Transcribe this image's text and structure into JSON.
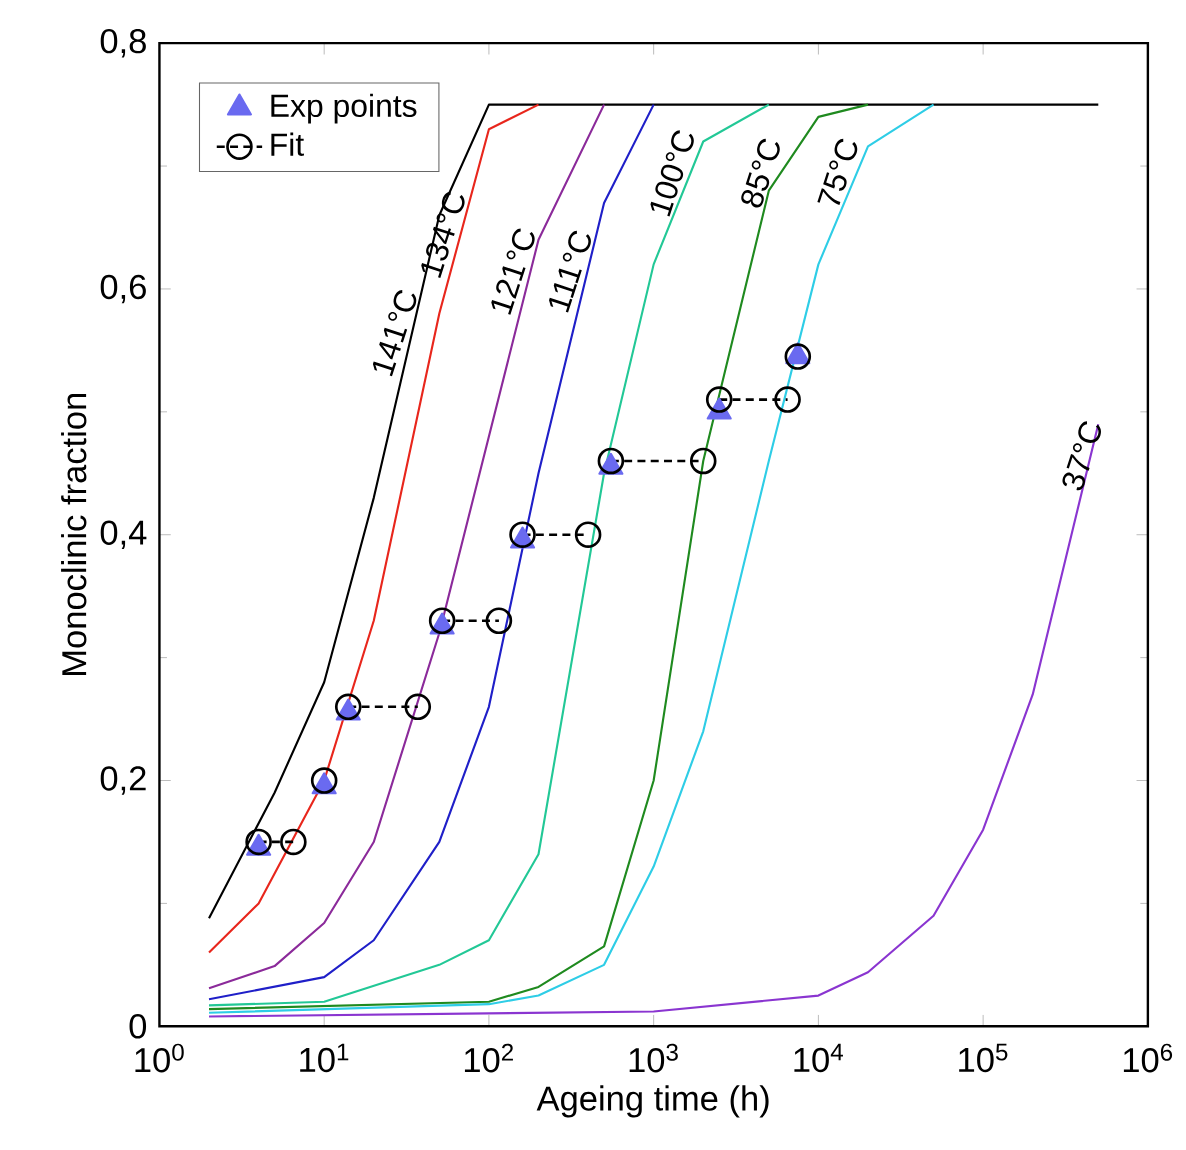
{
  "chart_data": {
    "type": "line",
    "xlabel": "Ageing time (h)",
    "ylabel": "Monoclinic fraction",
    "log": "x",
    "xlim": [
      1,
      1000000
    ],
    "ylim": [
      0,
      0.8
    ],
    "xticks": [
      {
        "value": 1,
        "label": "10$^{0}$"
      },
      {
        "value": 10,
        "label": "10$^{1}$"
      },
      {
        "value": 100,
        "label": "10$^{2}$"
      },
      {
        "value": 1000,
        "label": "10$^{3}$"
      },
      {
        "value": 10000,
        "label": "10$^{4}$"
      },
      {
        "value": 100000,
        "label": "10$^{5}$"
      },
      {
        "value": 1000000,
        "label": "10$^{6}$"
      }
    ],
    "yticks": [
      0,
      {
        "value": 0.2,
        "label": "0,2"
      },
      {
        "value": 0.4,
        "label": "0,4"
      },
      {
        "value": 0.6,
        "label": "0,6"
      },
      {
        "value": 0.8,
        "label": "0,8"
      }
    ],
    "grid": false,
    "legend": "top left",
    "series": [
      {
        "name": "141°C",
        "type": "line",
        "color": "#000000",
        "marker": "none",
        "x": [
          2,
          5,
          10,
          20,
          50,
          100,
          500000
        ],
        "values": [
          0.088,
          0.19,
          0.28,
          0.43,
          0.66,
          0.75,
          0.75
        ]
      },
      {
        "name": "134°C",
        "type": "line",
        "color": "#e8261c",
        "marker": "none",
        "x": [
          2,
          4,
          10,
          20,
          50,
          100,
          200
        ],
        "values": [
          0.06,
          0.1,
          0.2,
          0.33,
          0.58,
          0.73,
          0.75
        ]
      },
      {
        "name": "121°C",
        "type": "line",
        "color": "#8b2a9a",
        "marker": "none",
        "x": [
          2,
          5,
          10,
          20,
          50,
          100,
          200,
          500
        ],
        "values": [
          0.031,
          0.049,
          0.084,
          0.15,
          0.32,
          0.48,
          0.64,
          0.75
        ]
      },
      {
        "name": "111°C",
        "type": "line",
        "color": "#1f1fc8",
        "marker": "none",
        "x": [
          2,
          10,
          20,
          50,
          100,
          200,
          500,
          1000
        ],
        "values": [
          0.022,
          0.04,
          0.07,
          0.15,
          0.26,
          0.45,
          0.67,
          0.75
        ]
      },
      {
        "name": "100°C",
        "type": "line",
        "color": "#22c896",
        "marker": "none",
        "x": [
          2,
          10,
          50,
          100,
          200,
          500,
          1000,
          2000,
          5000
        ],
        "values": [
          0.017,
          0.02,
          0.05,
          0.07,
          0.14,
          0.45,
          0.62,
          0.72,
          0.75
        ]
      },
      {
        "name": "85°C",
        "type": "line",
        "color": "#1f8a1f",
        "marker": "none",
        "x": [
          2,
          100,
          200,
          500,
          1000,
          2000,
          5000,
          10000,
          20000
        ],
        "values": [
          0.014,
          0.02,
          0.032,
          0.065,
          0.2,
          0.46,
          0.68,
          0.74,
          0.75
        ]
      },
      {
        "name": "75°C",
        "type": "line",
        "color": "#2ecde6",
        "marker": "none",
        "x": [
          2,
          100,
          200,
          500,
          1000,
          2000,
          5000,
          10000,
          20000,
          50000
        ],
        "values": [
          0.011,
          0.018,
          0.025,
          0.05,
          0.13,
          0.24,
          0.46,
          0.62,
          0.716,
          0.75
        ]
      },
      {
        "name": "37°C",
        "type": "line",
        "color": "#8a35d0",
        "marker": "none",
        "x": [
          2,
          1000,
          10000,
          20000,
          50000,
          100000,
          200000,
          500000
        ],
        "values": [
          0.008,
          0.012,
          0.025,
          0.044,
          0.09,
          0.16,
          0.27,
          0.49
        ]
      },
      {
        "name": "Exp points",
        "type": "scatter",
        "color": "#6a6af0",
        "marker": "triangle",
        "x": [
          4,
          10,
          14,
          52,
          160,
          550,
          2500,
          7500
        ],
        "values": [
          0.145,
          0.195,
          0.255,
          0.325,
          0.395,
          0.455,
          0.5,
          0.545
        ]
      },
      {
        "name": "Fit",
        "type": "line",
        "color": "#000000",
        "marker": "circle",
        "line_style": "dashed",
        "x": [
          4,
          6.5,
          8,
          10,
          12,
          14,
          37,
          45,
          52,
          115,
          135,
          160,
          400,
          470,
          550,
          2000,
          2250,
          2500,
          6500,
          7000,
          7500
        ],
        "values": [
          0.15,
          0.15,
          null,
          0.2,
          null,
          0.26,
          0.26,
          null,
          0.33,
          0.33,
          null,
          0.4,
          0.4,
          null,
          0.46,
          0.46,
          null,
          0.51,
          0.51,
          null,
          0.545
        ]
      }
    ]
  }
}
